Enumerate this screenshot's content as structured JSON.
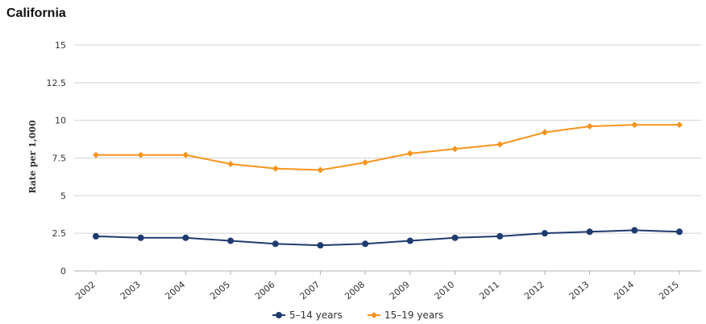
{
  "chart_data": {
    "type": "line",
    "title": "California",
    "xlabel": "",
    "ylabel": "Rate per 1,000",
    "ylim": [
      0,
      15
    ],
    "yticks": [
      "0",
      "2.5",
      "5",
      "7.5",
      "10",
      "12.5",
      "15"
    ],
    "categories": [
      "2002",
      "2003",
      "2004",
      "2005",
      "2006",
      "2007",
      "2008",
      "2009",
      "2010",
      "2011",
      "2012",
      "2013",
      "2014",
      "2015"
    ],
    "series": [
      {
        "name": "5–14 years",
        "color": "#1f3a6e",
        "values": [
          2.3,
          2.2,
          2.2,
          2.0,
          1.8,
          1.7,
          1.8,
          2.0,
          2.2,
          2.3,
          2.5,
          2.6,
          2.7,
          2.6
        ]
      },
      {
        "name": "15–19 years",
        "color": "#f7941d",
        "values": [
          7.7,
          7.7,
          7.7,
          7.1,
          6.8,
          6.7,
          7.2,
          7.8,
          8.1,
          8.4,
          9.2,
          9.6,
          9.7,
          9.7
        ]
      }
    ],
    "grid": true,
    "legend_position": "bottom-center"
  }
}
